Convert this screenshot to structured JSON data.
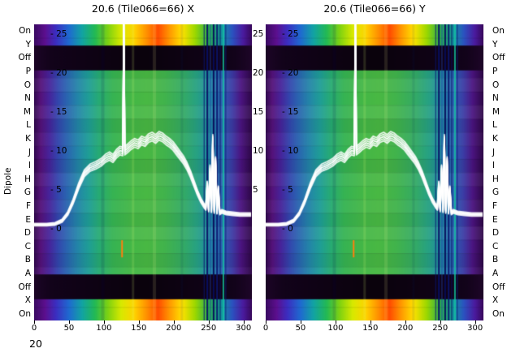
{
  "titles": {
    "left": "20.6 (Tile066=66) X",
    "right": "20.6 (Tile066=66) Y"
  },
  "y_axis": {
    "label": "Dipole",
    "row_labels": [
      "On",
      "Y",
      "Off",
      "P",
      "O",
      "N",
      "M",
      "L",
      "K",
      "J",
      "I",
      "H",
      "G",
      "F",
      "E",
      "D",
      "C",
      "B",
      "A",
      "Off",
      "X",
      "On"
    ]
  },
  "value_ticks": {
    "labels": [
      "- 25",
      "- 20",
      "- 15",
      "- 10",
      "- 5",
      "- 0"
    ],
    "values": [
      25,
      20,
      15,
      10,
      5,
      0
    ],
    "between_values": [
      25,
      20,
      15,
      10,
      5
    ]
  },
  "x_axis": {
    "labels": [
      "0",
      "50",
      "100",
      "150",
      "200",
      "250",
      "300"
    ],
    "values": [
      0,
      50,
      100,
      150,
      200,
      250,
      300
    ]
  },
  "corner_text": "20",
  "chart_data": {
    "type": "heatmap",
    "plots": [
      {
        "title": "20.6 (Tile066=66) X"
      },
      {
        "title": "20.6 (Tile066=66) Y"
      }
    ],
    "x_range": [
      0,
      312
    ],
    "value_min": -11.7,
    "value_max": 26.3,
    "value_ticks": [
      25,
      20,
      15,
      10,
      5,
      0
    ],
    "rows": [
      {
        "type": "hot",
        "shade": 0
      },
      {
        "type": "hot",
        "shade": 0
      },
      {
        "type": "off",
        "shade": 0
      },
      {
        "type": "normal",
        "shade": -0.04
      },
      {
        "type": "normal",
        "shade": 0.05
      },
      {
        "type": "normal",
        "shade": 0
      },
      {
        "type": "normal",
        "shade": 0.06
      },
      {
        "type": "normal",
        "shade": -0.05
      },
      {
        "type": "normal",
        "shade": 0.03
      },
      {
        "type": "normal",
        "shade": 0
      },
      {
        "type": "normal",
        "shade": -0.06
      },
      {
        "type": "normal",
        "shade": 0.05
      },
      {
        "type": "normal",
        "shade": 0
      },
      {
        "type": "normal",
        "shade": 0.04
      },
      {
        "type": "normal",
        "shade": -0.04
      },
      {
        "type": "normal",
        "shade": 0.06
      },
      {
        "type": "normal",
        "shade": 0
      },
      {
        "type": "normal",
        "shade": -0.05
      },
      {
        "type": "normal",
        "shade": 0.03
      },
      {
        "type": "off",
        "shade": 0
      },
      {
        "type": "hot",
        "shade": 0
      },
      {
        "type": "hot",
        "shade": 0
      }
    ],
    "palettes": {
      "normal": [
        [
          0.0,
          "#30094e"
        ],
        [
          0.03,
          "#55127a"
        ],
        [
          0.07,
          "#46249b"
        ],
        [
          0.11,
          "#3346ad"
        ],
        [
          0.15,
          "#2a64b0"
        ],
        [
          0.2,
          "#2385a8"
        ],
        [
          0.25,
          "#1f9e96"
        ],
        [
          0.3,
          "#27ab72"
        ],
        [
          0.36,
          "#36b353"
        ],
        [
          0.44,
          "#43b747"
        ],
        [
          0.52,
          "#49b843"
        ],
        [
          0.6,
          "#41b34c"
        ],
        [
          0.68,
          "#35ab62"
        ],
        [
          0.75,
          "#26a184"
        ],
        [
          0.81,
          "#2088a6"
        ],
        [
          0.86,
          "#2b62b2"
        ],
        [
          0.91,
          "#3c3aa4"
        ],
        [
          0.95,
          "#4b1480"
        ],
        [
          1.0,
          "#2d0845"
        ]
      ],
      "hot": [
        [
          0.0,
          "#3a0a62"
        ],
        [
          0.05,
          "#5c0f8e"
        ],
        [
          0.1,
          "#3b2ec0"
        ],
        [
          0.16,
          "#1f6ad0"
        ],
        [
          0.22,
          "#12a3a3"
        ],
        [
          0.28,
          "#23b954"
        ],
        [
          0.34,
          "#7fd211"
        ],
        [
          0.4,
          "#d8e900"
        ],
        [
          0.46,
          "#ffd300"
        ],
        [
          0.52,
          "#ff8c00"
        ],
        [
          0.57,
          "#ff4d00"
        ],
        [
          0.62,
          "#ff9500"
        ],
        [
          0.68,
          "#ffe100"
        ],
        [
          0.74,
          "#9bd800"
        ],
        [
          0.8,
          "#2db04e"
        ],
        [
          0.86,
          "#14929e"
        ],
        [
          0.91,
          "#2b52c0"
        ],
        [
          0.96,
          "#4a1a9e"
        ],
        [
          1.0,
          "#38085a"
        ]
      ],
      "off": [
        [
          0.0,
          "#1c0526"
        ],
        [
          0.08,
          "#12031a"
        ],
        [
          0.5,
          "#0a020c"
        ],
        [
          0.92,
          "#12031a"
        ],
        [
          1.0,
          "#1e0628"
        ]
      ]
    },
    "stripes": [
      {
        "ch": 96,
        "w": 4,
        "color": "rgba(0,0,80,0.12)"
      },
      {
        "ch": 140,
        "w": 3,
        "color": "rgba(220,255,120,0.15)"
      },
      {
        "ch": 170,
        "w": 4,
        "color": "rgba(255,255,160,0.12)"
      },
      {
        "ch": 210,
        "w": 3,
        "color": "rgba(0,40,100,0.10)"
      },
      {
        "ch": 243,
        "w": 1,
        "color": "rgba(10,20,110,0.9)"
      },
      {
        "ch": 247,
        "w": 2,
        "color": "rgba(8,16,100,0.95)"
      },
      {
        "ch": 252,
        "w": 1,
        "color": "rgba(30,60,160,0.8)"
      },
      {
        "ch": 256,
        "w": 2,
        "color": "rgba(6,12,90,0.95)"
      },
      {
        "ch": 261,
        "w": 2,
        "color": "rgba(10,20,110,0.9)"
      },
      {
        "ch": 266,
        "w": 1,
        "color": "rgba(8,16,100,0.9)"
      },
      {
        "ch": 270,
        "w": 2,
        "color": "rgba(20,200,160,0.8)"
      },
      {
        "ch": 274,
        "w": 1,
        "color": "rgba(10,30,120,0.85)"
      }
    ],
    "flag_marks": [
      {
        "ch": 126,
        "v_from": -1.4,
        "v_to": -3.6,
        "color": "#ff7f0e"
      }
    ],
    "overlay": {
      "color": "#ffffff",
      "width": 1.8,
      "bundle_offsets": [
        -0.55,
        -0.28,
        0,
        0.28,
        0.55
      ],
      "points": [
        [
          0,
          0.6
        ],
        [
          18,
          0.6
        ],
        [
          30,
          0.7
        ],
        [
          40,
          1.1
        ],
        [
          48,
          2.0
        ],
        [
          56,
          3.6
        ],
        [
          64,
          5.6
        ],
        [
          72,
          7.2
        ],
        [
          80,
          7.9
        ],
        [
          88,
          8.2
        ],
        [
          96,
          8.6
        ],
        [
          102,
          9.1
        ],
        [
          108,
          9.4
        ],
        [
          113,
          9.1
        ],
        [
          118,
          9.7
        ],
        [
          123,
          10.1
        ],
        [
          127,
          10.0
        ],
        [
          128.5,
          26.8
        ],
        [
          130,
          10.1
        ],
        [
          134,
          10.4
        ],
        [
          139,
          10.8
        ],
        [
          144,
          11.1
        ],
        [
          149,
          10.9
        ],
        [
          154,
          11.4
        ],
        [
          159,
          11.2
        ],
        [
          164,
          11.7
        ],
        [
          169,
          11.9
        ],
        [
          174,
          11.6
        ],
        [
          179,
          12.0
        ],
        [
          184,
          11.8
        ],
        [
          189,
          11.4
        ],
        [
          194,
          11.1
        ],
        [
          199,
          10.7
        ],
        [
          204,
          10.1
        ],
        [
          209,
          9.5
        ],
        [
          214,
          8.9
        ],
        [
          219,
          8.1
        ],
        [
          224,
          7.1
        ],
        [
          229,
          5.9
        ],
        [
          234,
          4.7
        ],
        [
          239,
          3.7
        ],
        [
          243,
          3.1
        ],
        [
          246,
          2.7
        ],
        [
          248,
          5.8
        ],
        [
          250,
          2.5
        ],
        [
          252,
          7.8
        ],
        [
          254,
          2.4
        ],
        [
          256,
          11.6
        ],
        [
          258,
          2.3
        ],
        [
          260,
          8.8
        ],
        [
          262,
          2.2
        ],
        [
          264,
          5.2
        ],
        [
          266,
          2.1
        ],
        [
          269,
          2.3
        ],
        [
          275,
          2.1
        ],
        [
          285,
          2.0
        ],
        [
          295,
          1.9
        ],
        [
          310,
          1.9
        ]
      ]
    }
  }
}
